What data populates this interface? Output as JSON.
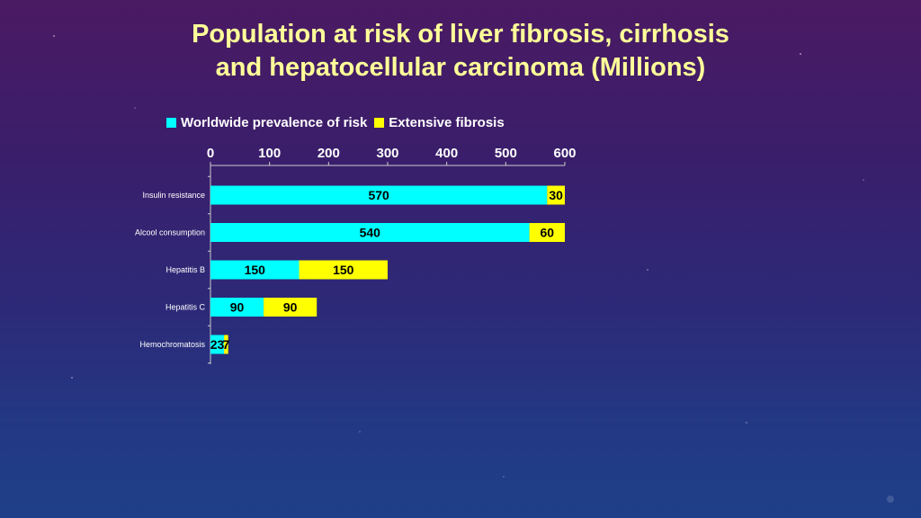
{
  "title_line1": "Population at risk of liver fibrosis, cirrhosis",
  "title_line2": "and hepatocellular carcinoma (Millions)",
  "colors": {
    "worldwide": "#00ffff",
    "fibrosis": "#ffff00",
    "title": "#ffff99",
    "text": "#ffffff"
  },
  "chart_data": {
    "type": "bar",
    "orientation": "horizontal",
    "stacked": true,
    "title": "Population at risk of liver fibrosis, cirrhosis and hepatocellular carcinoma (Millions)",
    "categories": [
      "Insulin resistance",
      "Alcool consumption",
      "Hepatitis B",
      "Hepatitis C",
      "Hemochromatosis"
    ],
    "series": [
      {
        "name": "Worldwide prevalence of risk",
        "values": [
          570,
          540,
          150,
          90,
          23
        ]
      },
      {
        "name": "Extensive fibrosis",
        "values": [
          30,
          60,
          150,
          90,
          7
        ]
      }
    ],
    "xlim": [
      0,
      600
    ],
    "xticks": [
      "0",
      "100",
      "200",
      "300",
      "400",
      "500",
      "600"
    ],
    "axis_position": "top",
    "legend_position": "top",
    "grid": false
  }
}
